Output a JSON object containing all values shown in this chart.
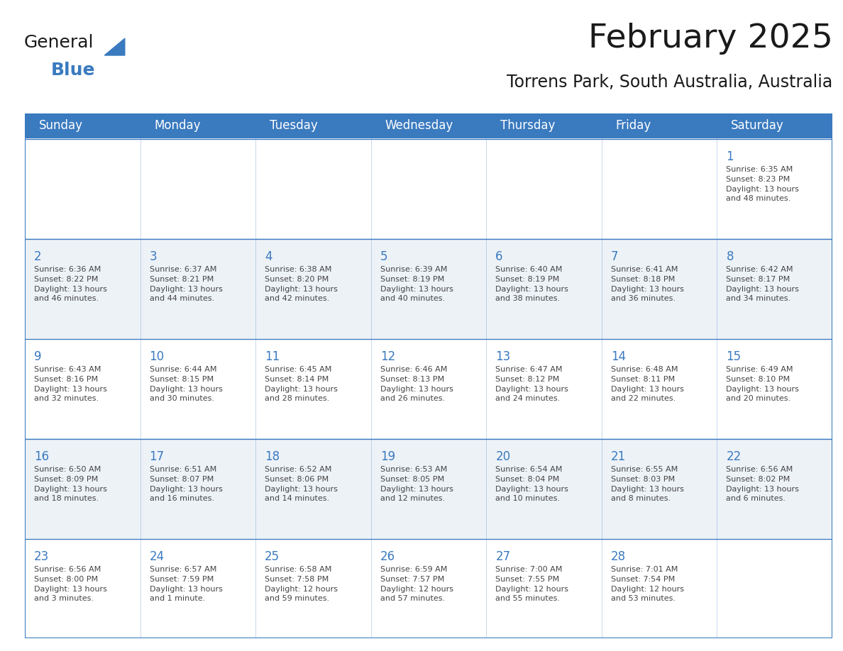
{
  "title": "February 2025",
  "subtitle": "Torrens Park, South Australia, Australia",
  "header_bg": "#3a7abf",
  "header_text_color": "#ffffff",
  "cell_bg": "#ffffff",
  "alt_cell_bg": "#edf2f7",
  "border_color": "#3a7abf",
  "day_number_color": "#3a7abf",
  "cell_text_color": "#444444",
  "days_of_week": [
    "Sunday",
    "Monday",
    "Tuesday",
    "Wednesday",
    "Thursday",
    "Friday",
    "Saturday"
  ],
  "weeks": [
    [
      {
        "day": null,
        "info": null
      },
      {
        "day": null,
        "info": null
      },
      {
        "day": null,
        "info": null
      },
      {
        "day": null,
        "info": null
      },
      {
        "day": null,
        "info": null
      },
      {
        "day": null,
        "info": null
      },
      {
        "day": 1,
        "info": "Sunrise: 6:35 AM\nSunset: 8:23 PM\nDaylight: 13 hours\nand 48 minutes."
      }
    ],
    [
      {
        "day": 2,
        "info": "Sunrise: 6:36 AM\nSunset: 8:22 PM\nDaylight: 13 hours\nand 46 minutes."
      },
      {
        "day": 3,
        "info": "Sunrise: 6:37 AM\nSunset: 8:21 PM\nDaylight: 13 hours\nand 44 minutes."
      },
      {
        "day": 4,
        "info": "Sunrise: 6:38 AM\nSunset: 8:20 PM\nDaylight: 13 hours\nand 42 minutes."
      },
      {
        "day": 5,
        "info": "Sunrise: 6:39 AM\nSunset: 8:19 PM\nDaylight: 13 hours\nand 40 minutes."
      },
      {
        "day": 6,
        "info": "Sunrise: 6:40 AM\nSunset: 8:19 PM\nDaylight: 13 hours\nand 38 minutes."
      },
      {
        "day": 7,
        "info": "Sunrise: 6:41 AM\nSunset: 8:18 PM\nDaylight: 13 hours\nand 36 minutes."
      },
      {
        "day": 8,
        "info": "Sunrise: 6:42 AM\nSunset: 8:17 PM\nDaylight: 13 hours\nand 34 minutes."
      }
    ],
    [
      {
        "day": 9,
        "info": "Sunrise: 6:43 AM\nSunset: 8:16 PM\nDaylight: 13 hours\nand 32 minutes."
      },
      {
        "day": 10,
        "info": "Sunrise: 6:44 AM\nSunset: 8:15 PM\nDaylight: 13 hours\nand 30 minutes."
      },
      {
        "day": 11,
        "info": "Sunrise: 6:45 AM\nSunset: 8:14 PM\nDaylight: 13 hours\nand 28 minutes."
      },
      {
        "day": 12,
        "info": "Sunrise: 6:46 AM\nSunset: 8:13 PM\nDaylight: 13 hours\nand 26 minutes."
      },
      {
        "day": 13,
        "info": "Sunrise: 6:47 AM\nSunset: 8:12 PM\nDaylight: 13 hours\nand 24 minutes."
      },
      {
        "day": 14,
        "info": "Sunrise: 6:48 AM\nSunset: 8:11 PM\nDaylight: 13 hours\nand 22 minutes."
      },
      {
        "day": 15,
        "info": "Sunrise: 6:49 AM\nSunset: 8:10 PM\nDaylight: 13 hours\nand 20 minutes."
      }
    ],
    [
      {
        "day": 16,
        "info": "Sunrise: 6:50 AM\nSunset: 8:09 PM\nDaylight: 13 hours\nand 18 minutes."
      },
      {
        "day": 17,
        "info": "Sunrise: 6:51 AM\nSunset: 8:07 PM\nDaylight: 13 hours\nand 16 minutes."
      },
      {
        "day": 18,
        "info": "Sunrise: 6:52 AM\nSunset: 8:06 PM\nDaylight: 13 hours\nand 14 minutes."
      },
      {
        "day": 19,
        "info": "Sunrise: 6:53 AM\nSunset: 8:05 PM\nDaylight: 13 hours\nand 12 minutes."
      },
      {
        "day": 20,
        "info": "Sunrise: 6:54 AM\nSunset: 8:04 PM\nDaylight: 13 hours\nand 10 minutes."
      },
      {
        "day": 21,
        "info": "Sunrise: 6:55 AM\nSunset: 8:03 PM\nDaylight: 13 hours\nand 8 minutes."
      },
      {
        "day": 22,
        "info": "Sunrise: 6:56 AM\nSunset: 8:02 PM\nDaylight: 13 hours\nand 6 minutes."
      }
    ],
    [
      {
        "day": 23,
        "info": "Sunrise: 6:56 AM\nSunset: 8:00 PM\nDaylight: 13 hours\nand 3 minutes."
      },
      {
        "day": 24,
        "info": "Sunrise: 6:57 AM\nSunset: 7:59 PM\nDaylight: 13 hours\nand 1 minute."
      },
      {
        "day": 25,
        "info": "Sunrise: 6:58 AM\nSunset: 7:58 PM\nDaylight: 12 hours\nand 59 minutes."
      },
      {
        "day": 26,
        "info": "Sunrise: 6:59 AM\nSunset: 7:57 PM\nDaylight: 12 hours\nand 57 minutes."
      },
      {
        "day": 27,
        "info": "Sunrise: 7:00 AM\nSunset: 7:55 PM\nDaylight: 12 hours\nand 55 minutes."
      },
      {
        "day": 28,
        "info": "Sunrise: 7:01 AM\nSunset: 7:54 PM\nDaylight: 12 hours\nand 53 minutes."
      },
      {
        "day": null,
        "info": null
      }
    ]
  ],
  "logo_general_color": "#1a1a1a",
  "logo_blue_color": "#3a7abf",
  "title_fontsize": 34,
  "subtitle_fontsize": 17,
  "header_fontsize": 12,
  "day_number_fontsize": 12,
  "cell_text_fontsize": 8.0,
  "num_weeks": 5,
  "num_cols": 7
}
